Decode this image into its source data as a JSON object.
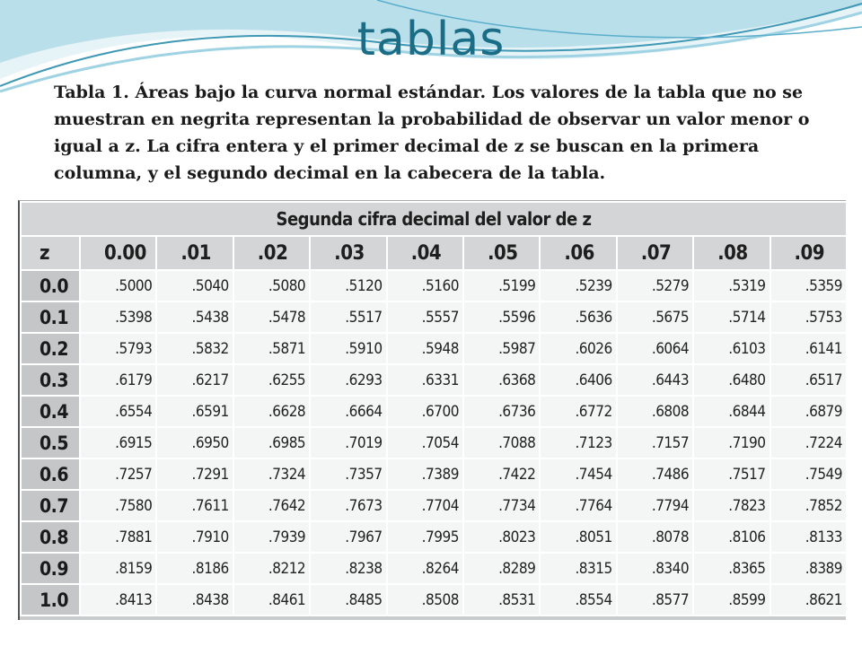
{
  "slide": {
    "title": "tablas",
    "caption": "Tabla 1.  Áreas bajo la curva normal estándar.  Los valores de la tabla que no se muestran en negrita representan la probabilidad de observar un valor menor o igual a z.  La cifra entera y el primer decimal de z se buscan en la primera columna, y el segundo decimal en la cabecera de la tabla."
  },
  "table": {
    "group_header": "Segunda cifra decimal del valor de z",
    "columns": [
      "z",
      "0.00",
      ".01",
      ".02",
      ".03",
      ".04",
      ".05",
      ".06",
      ".07",
      ".08",
      ".09"
    ],
    "rows": [
      [
        "0.0",
        ".5000",
        ".5040",
        ".5080",
        ".5120",
        ".5160",
        ".5199",
        ".5239",
        ".5279",
        ".5319",
        ".5359"
      ],
      [
        "0.1",
        ".5398",
        ".5438",
        ".5478",
        ".5517",
        ".5557",
        ".5596",
        ".5636",
        ".5675",
        ".5714",
        ".5753"
      ],
      [
        "0.2",
        ".5793",
        ".5832",
        ".5871",
        ".5910",
        ".5948",
        ".5987",
        ".6026",
        ".6064",
        ".6103",
        ".6141"
      ],
      [
        "0.3",
        ".6179",
        ".6217",
        ".6255",
        ".6293",
        ".6331",
        ".6368",
        ".6406",
        ".6443",
        ".6480",
        ".6517"
      ],
      [
        "0.4",
        ".6554",
        ".6591",
        ".6628",
        ".6664",
        ".6700",
        ".6736",
        ".6772",
        ".6808",
        ".6844",
        ".6879"
      ],
      [
        "0.5",
        ".6915",
        ".6950",
        ".6985",
        ".7019",
        ".7054",
        ".7088",
        ".7123",
        ".7157",
        ".7190",
        ".7224"
      ],
      [
        "0.6",
        ".7257",
        ".7291",
        ".7324",
        ".7357",
        ".7389",
        ".7422",
        ".7454",
        ".7486",
        ".7517",
        ".7549"
      ],
      [
        "0.7",
        ".7580",
        ".7611",
        ".7642",
        ".7673",
        ".7704",
        ".7734",
        ".7764",
        ".7794",
        ".7823",
        ".7852"
      ],
      [
        "0.8",
        ".7881",
        ".7910",
        ".7939",
        ".7967",
        ".7995",
        ".8023",
        ".8051",
        ".8078",
        ".8106",
        ".8133"
      ],
      [
        "0.9",
        ".8159",
        ".8186",
        ".8212",
        ".8238",
        ".8264",
        ".8289",
        ".8315",
        ".8340",
        ".8365",
        ".8389"
      ],
      [
        "1.0",
        ".8413",
        ".8438",
        ".8461",
        ".8485",
        ".8508",
        ".8531",
        ".8554",
        ".8577",
        ".8599",
        ".8621"
      ]
    ]
  },
  "colors": {
    "title": "#1b6d86",
    "swoosh_dark": "#3f98b4",
    "swoosh_light": "#9fd3e3",
    "header_bg": "#d4d5d6",
    "z_column_bg": "#c4c6c8",
    "cell_bg": "#f4f5f5"
  }
}
